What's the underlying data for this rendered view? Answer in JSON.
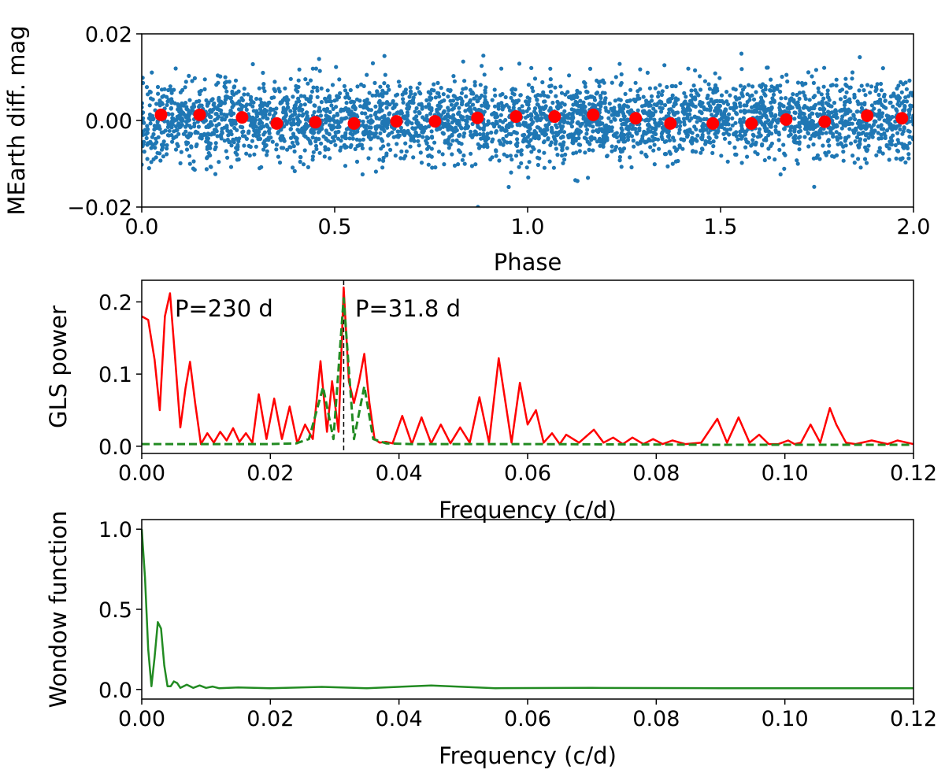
{
  "chart_data": [
    {
      "type": "scatter",
      "xlabel": "Phase",
      "ylabel": "MEarth diff. mag",
      "xlim": [
        0.0,
        2.0
      ],
      "ylim": [
        -0.02,
        0.02
      ],
      "xticks": [
        "0.0",
        "0.5",
        "1.0",
        "1.5",
        "2.0"
      ],
      "yticks": [
        "−0.02",
        "0.00",
        "0.02"
      ],
      "colors": {
        "raw": "#1f77b4",
        "binned": "#ff0000"
      },
      "raw_points": {
        "description_values": "dense phase-folded photometry",
        "center": 0.0,
        "typical_scatter": 0.006,
        "phase_range": [
          0.0,
          2.0
        ]
      },
      "series": [
        {
          "name": "",
          "x": [
            0.05,
            0.15,
            0.26,
            0.35,
            0.45,
            0.55,
            0.66,
            0.76,
            0.87,
            0.97,
            1.07,
            1.17,
            1.28,
            1.37,
            1.48,
            1.58,
            1.67,
            1.77,
            1.88,
            1.97
          ],
          "y": [
            0.0013,
            0.0013,
            0.0007,
            -0.0007,
            -0.0004,
            -0.0007,
            -0.0002,
            -0.0002,
            0.0006,
            0.0009,
            0.0009,
            0.0013,
            0.0005,
            -0.0007,
            -0.0007,
            -0.0007,
            0.0002,
            -0.0003,
            0.0011,
            0.0005
          ]
        }
      ]
    },
    {
      "type": "line",
      "xlabel": "Frequency (c/d)",
      "ylabel": "GLS power",
      "xlim": [
        0.0,
        0.12
      ],
      "ylim": [
        -0.01,
        0.23
      ],
      "xticks": [
        "0.00",
        "0.02",
        "0.04",
        "0.06",
        "0.08",
        "0.10",
        "0.12"
      ],
      "yticks": [
        "0.0",
        "0.1",
        "0.2"
      ],
      "vline": 0.0314,
      "annotations": [
        "P=230 d",
        "P=31.8 d"
      ],
      "colors": {
        "gls": "#ff0000",
        "model": "#228b22"
      },
      "series": [
        {
          "name": "",
          "x": [
            0.0,
            0.001,
            0.002,
            0.0028,
            0.0036,
            0.0044,
            0.0052,
            0.006,
            0.0068,
            0.0075,
            0.0083,
            0.0092,
            0.0102,
            0.0112,
            0.0122,
            0.0132,
            0.0142,
            0.0152,
            0.0162,
            0.0172,
            0.0182,
            0.0194,
            0.0206,
            0.0218,
            0.023,
            0.0242,
            0.0254,
            0.0266,
            0.0278,
            0.0288,
            0.0296,
            0.0306,
            0.0314,
            0.0322,
            0.033,
            0.0338,
            0.0346,
            0.0354,
            0.0362,
            0.037,
            0.038,
            0.039,
            0.0405,
            0.042,
            0.0435,
            0.045,
            0.0465,
            0.048,
            0.0495,
            0.051,
            0.0525,
            0.054,
            0.0555,
            0.0564,
            0.0575,
            0.0588,
            0.06,
            0.0613,
            0.0625,
            0.0638,
            0.065,
            0.066,
            0.068,
            0.0703,
            0.0718,
            0.0733,
            0.0748,
            0.0763,
            0.078,
            0.0795,
            0.081,
            0.0825,
            0.0845,
            0.087,
            0.0895,
            0.091,
            0.0928,
            0.0945,
            0.096,
            0.0975,
            0.099,
            0.1005,
            0.1015,
            0.1025,
            0.104,
            0.1055,
            0.107,
            0.108,
            0.1095,
            0.111,
            0.1135,
            0.116,
            0.1175,
            0.1195,
            0.12
          ],
          "y": [
            0.18,
            0.175,
            0.12,
            0.05,
            0.18,
            0.212,
            0.12,
            0.026,
            0.08,
            0.117,
            0.06,
            0.003,
            0.018,
            0.005,
            0.02,
            0.008,
            0.025,
            0.006,
            0.018,
            0.005,
            0.072,
            0.01,
            0.066,
            0.01,
            0.055,
            0.004,
            0.03,
            0.01,
            0.118,
            0.02,
            0.09,
            0.02,
            0.22,
            0.09,
            0.06,
            0.09,
            0.128,
            0.06,
            0.01,
            0.005,
            0.006,
            0.004,
            0.042,
            0.003,
            0.04,
            0.004,
            0.03,
            0.004,
            0.026,
            0.005,
            0.068,
            0.005,
            0.122,
            0.07,
            0.005,
            0.088,
            0.03,
            0.05,
            0.005,
            0.018,
            0.003,
            0.016,
            0.005,
            0.023,
            0.005,
            0.012,
            0.003,
            0.012,
            0.003,
            0.01,
            0.003,
            0.008,
            0.003,
            0.005,
            0.038,
            0.005,
            0.04,
            0.005,
            0.016,
            0.003,
            0.003,
            0.008,
            0.003,
            0.005,
            0.03,
            0.005,
            0.053,
            0.03,
            0.005,
            0.003,
            0.008,
            0.003,
            0.008,
            0.004,
            0.003
          ]
        },
        {
          "name": "",
          "x": [
            0.0,
            0.02,
            0.024,
            0.026,
            0.0282,
            0.0298,
            0.0314,
            0.033,
            0.0346,
            0.036,
            0.038,
            0.042,
            0.06,
            0.09,
            0.12
          ],
          "y": [
            0.003,
            0.003,
            0.004,
            0.01,
            0.082,
            0.01,
            0.205,
            0.01,
            0.083,
            0.01,
            0.004,
            0.003,
            0.003,
            0.002,
            0.002
          ]
        }
      ]
    },
    {
      "type": "line",
      "xlabel": "Frequency (c/d)",
      "ylabel": "Wondow function",
      "xlim": [
        0.0,
        0.12
      ],
      "ylim": [
        -0.06,
        1.06
      ],
      "xticks": [
        "0.00",
        "0.02",
        "0.04",
        "0.06",
        "0.08",
        "0.10",
        "0.12"
      ],
      "yticks": [
        "0.0",
        "0.5",
        "1.0"
      ],
      "colors": {
        "window": "#228b22"
      },
      "series": [
        {
          "name": "",
          "x": [
            0.0,
            0.0005,
            0.001,
            0.0015,
            0.002,
            0.0025,
            0.003,
            0.0035,
            0.004,
            0.0045,
            0.005,
            0.0055,
            0.006,
            0.007,
            0.008,
            0.009,
            0.01,
            0.011,
            0.012,
            0.015,
            0.02,
            0.028,
            0.035,
            0.045,
            0.055,
            0.07,
            0.09,
            0.11,
            0.12
          ],
          "y": [
            1.0,
            0.7,
            0.25,
            0.02,
            0.2,
            0.42,
            0.38,
            0.15,
            0.02,
            0.02,
            0.05,
            0.04,
            0.01,
            0.03,
            0.01,
            0.025,
            0.01,
            0.018,
            0.008,
            0.012,
            0.008,
            0.016,
            0.008,
            0.025,
            0.008,
            0.01,
            0.008,
            0.008,
            0.008
          ]
        }
      ]
    }
  ]
}
